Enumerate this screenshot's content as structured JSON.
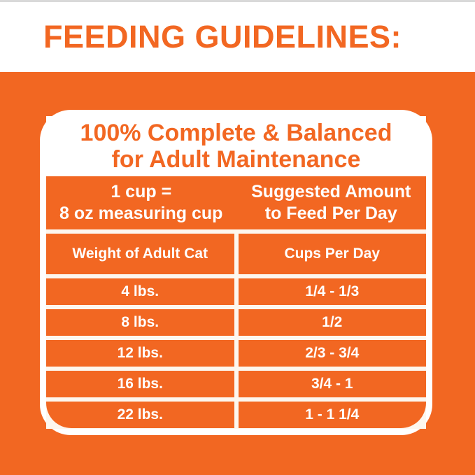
{
  "header": {
    "title": "FEEDING GUIDELINES:"
  },
  "colors": {
    "brand_orange": "#F26722",
    "card_border_white": "#FFFFFF",
    "gridline_cream": "#FDF7EF",
    "top_edge_gray": "#D9D9D9"
  },
  "card": {
    "title_line1": "100% Complete & Balanced",
    "title_line2": "for Adult Maintenance",
    "info": {
      "left_line1": "1 cup =",
      "left_line2": "8 oz measuring cup",
      "right_line1": "Suggested Amount",
      "right_line2": "to Feed Per Day"
    },
    "columns": {
      "left": "Weight of Adult Cat",
      "right": "Cups Per Day"
    },
    "rows": [
      {
        "weight": "4 lbs.",
        "cups": "1/4 - 1/3"
      },
      {
        "weight": "8 lbs.",
        "cups": "1/2"
      },
      {
        "weight": "12 lbs.",
        "cups": "2/3 - 3/4"
      },
      {
        "weight": "16 lbs.",
        "cups": "3/4 - 1"
      },
      {
        "weight": "22 lbs.",
        "cups": "1 - 1 1/4"
      }
    ]
  },
  "chart_data": {
    "type": "table",
    "title": "100% Complete & Balanced for Adult Maintenance",
    "subtitle": "FEEDING GUIDELINES:",
    "note_left": "1 cup = 8 oz measuring cup",
    "note_right": "Suggested Amount to Feed Per Day",
    "columns": [
      "Weight of Adult Cat",
      "Cups Per Day"
    ],
    "rows": [
      [
        "4 lbs.",
        "1/4 - 1/3"
      ],
      [
        "8 lbs.",
        "1/2"
      ],
      [
        "12 lbs.",
        "2/3 - 3/4"
      ],
      [
        "16 lbs.",
        "3/4 - 1"
      ],
      [
        "22 lbs.",
        "1 - 1 1/4"
      ]
    ]
  }
}
